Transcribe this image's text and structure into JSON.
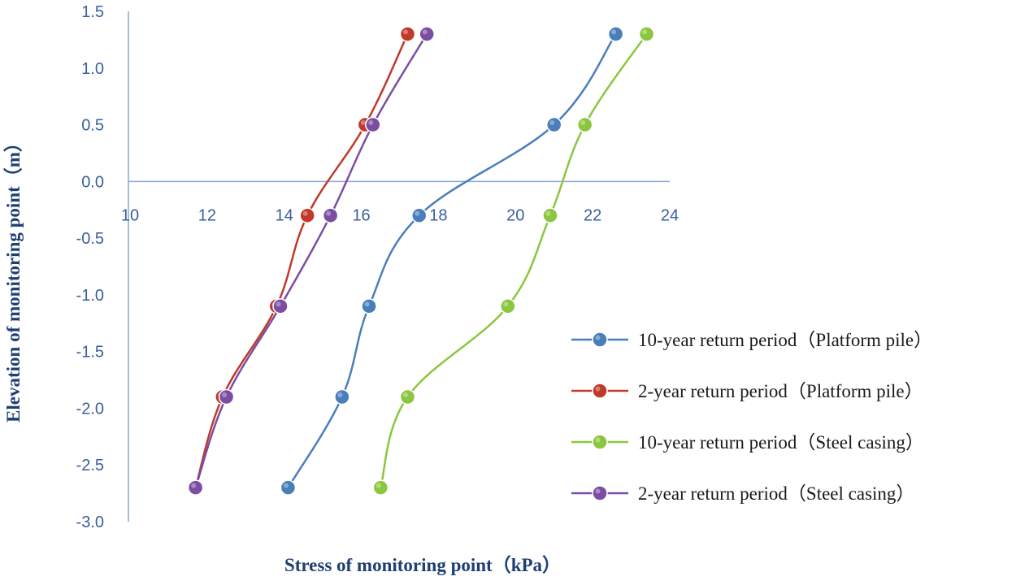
{
  "chart_data": {
    "type": "line",
    "title": "",
    "xlabel": "Stress of monitoring point（kPa）",
    "ylabel": "Elevation of monitoring point（m）",
    "xlim": [
      10,
      24
    ],
    "ylim": [
      -3.0,
      1.5
    ],
    "x_ticks": [
      "10",
      "12",
      "14",
      "16",
      "18",
      "20",
      "22",
      "24"
    ],
    "y_ticks": [
      "1.5",
      "1.0",
      "0.5",
      "0.0",
      "-0.5",
      "-1.0",
      "-1.5",
      "-2.0",
      "-2.5",
      "-3.0"
    ],
    "grid": false,
    "legend_position": "right",
    "series": [
      {
        "name": "10-year return period（Platform pile）",
        "color": "#4a7ebb",
        "points": [
          [
            22.6,
            1.3
          ],
          [
            21.0,
            0.5
          ],
          [
            17.5,
            -0.3
          ],
          [
            16.2,
            -1.1
          ],
          [
            15.5,
            -1.9
          ],
          [
            14.1,
            -2.7
          ]
        ]
      },
      {
        "name": "2-year return period（Platform pile）",
        "color": "#c0392b",
        "points": [
          [
            17.2,
            1.3
          ],
          [
            16.1,
            0.5
          ],
          [
            14.6,
            -0.3
          ],
          [
            13.8,
            -1.1
          ],
          [
            12.4,
            -1.9
          ],
          [
            11.7,
            -2.7
          ]
        ]
      },
      {
        "name": "10-year return period（Steel casing）",
        "color": "#8cc63f",
        "points": [
          [
            23.4,
            1.3
          ],
          [
            21.8,
            0.5
          ],
          [
            20.9,
            -0.3
          ],
          [
            19.8,
            -1.1
          ],
          [
            17.2,
            -1.9
          ],
          [
            16.5,
            -2.7
          ]
        ]
      },
      {
        "name": "2-year return period（Steel casing）",
        "color": "#7b4ea3",
        "points": [
          [
            17.7,
            1.3
          ],
          [
            16.3,
            0.5
          ],
          [
            15.2,
            -0.3
          ],
          [
            13.9,
            -1.1
          ],
          [
            12.5,
            -1.9
          ],
          [
            11.7,
            -2.7
          ]
        ]
      }
    ]
  }
}
